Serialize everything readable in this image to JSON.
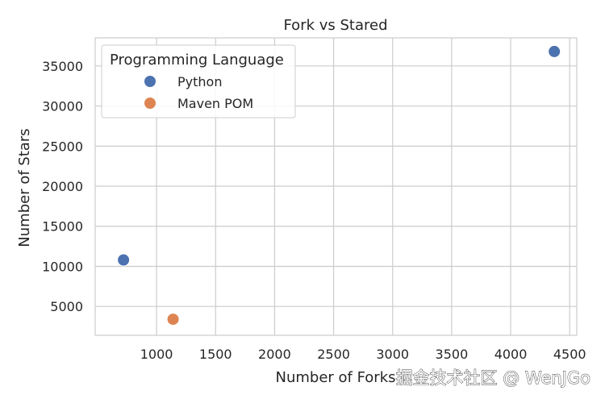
{
  "chart_data": {
    "type": "scatter",
    "title": "Fork vs Stared",
    "xlabel": "Number of Forks",
    "ylabel": "Number of Stars",
    "xlim": [
      480,
      4560
    ],
    "ylim": [
      1400,
      38500
    ],
    "xticks": [
      1000,
      1500,
      2000,
      2500,
      3000,
      3500,
      4000,
      4500
    ],
    "yticks": [
      5000,
      10000,
      15000,
      20000,
      25000,
      30000,
      35000
    ],
    "grid": true,
    "legend": {
      "title": "Programming Language",
      "placement": "top-left"
    },
    "series": [
      {
        "name": "Python",
        "color": "#4c72b0",
        "points": [
          {
            "x": 720,
            "y": 10800
          },
          {
            "x": 4370,
            "y": 36800
          }
        ]
      },
      {
        "name": "Maven POM",
        "color": "#dd8452",
        "points": [
          {
            "x": 1140,
            "y": 3400
          }
        ]
      }
    ]
  },
  "watermark": "掘金技术社区 @ WenJGo"
}
